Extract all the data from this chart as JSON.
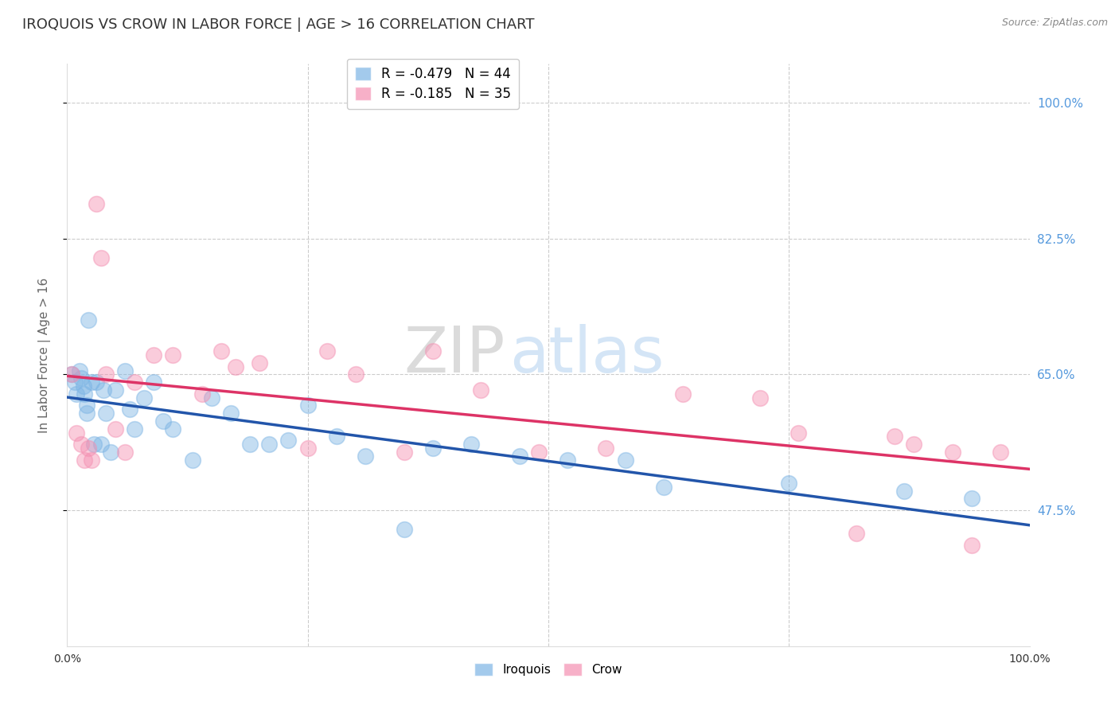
{
  "title": "IROQUOIS VS CROW IN LABOR FORCE | AGE > 16 CORRELATION CHART",
  "source": "Source: ZipAtlas.com",
  "ylabel": "In Labor Force | Age > 16",
  "xlim": [
    0.0,
    1.0
  ],
  "ylim": [
    0.3,
    1.05
  ],
  "yticks": [
    0.475,
    0.65,
    0.825,
    1.0
  ],
  "ytick_labels": [
    "47.5%",
    "65.0%",
    "82.5%",
    "100.0%"
  ],
  "iroquois_color": "#7cb4e4",
  "crow_color": "#f48fb1",
  "iroquois_line_color": "#2255aa",
  "crow_line_color": "#dd3366",
  "iroquois_R": -0.479,
  "iroquois_N": 44,
  "crow_R": -0.185,
  "crow_N": 35,
  "iroquois_x": [
    0.005,
    0.008,
    0.01,
    0.013,
    0.015,
    0.017,
    0.018,
    0.02,
    0.02,
    0.022,
    0.025,
    0.028,
    0.03,
    0.035,
    0.038,
    0.04,
    0.045,
    0.05,
    0.06,
    0.065,
    0.07,
    0.08,
    0.09,
    0.1,
    0.11,
    0.13,
    0.15,
    0.17,
    0.19,
    0.21,
    0.23,
    0.25,
    0.28,
    0.31,
    0.35,
    0.38,
    0.42,
    0.47,
    0.52,
    0.58,
    0.62,
    0.75,
    0.87,
    0.94
  ],
  "iroquois_y": [
    0.65,
    0.64,
    0.625,
    0.655,
    0.645,
    0.635,
    0.625,
    0.61,
    0.6,
    0.72,
    0.64,
    0.56,
    0.64,
    0.56,
    0.63,
    0.6,
    0.55,
    0.63,
    0.655,
    0.605,
    0.58,
    0.62,
    0.64,
    0.59,
    0.58,
    0.54,
    0.62,
    0.6,
    0.56,
    0.56,
    0.565,
    0.61,
    0.57,
    0.545,
    0.45,
    0.555,
    0.56,
    0.545,
    0.54,
    0.54,
    0.505,
    0.51,
    0.5,
    0.49
  ],
  "crow_x": [
    0.005,
    0.01,
    0.015,
    0.018,
    0.022,
    0.025,
    0.03,
    0.035,
    0.04,
    0.05,
    0.06,
    0.07,
    0.09,
    0.11,
    0.14,
    0.16,
    0.175,
    0.2,
    0.25,
    0.27,
    0.3,
    0.35,
    0.38,
    0.43,
    0.49,
    0.56,
    0.64,
    0.72,
    0.76,
    0.82,
    0.86,
    0.88,
    0.92,
    0.94,
    0.97
  ],
  "crow_y": [
    0.65,
    0.575,
    0.56,
    0.54,
    0.555,
    0.54,
    0.87,
    0.8,
    0.65,
    0.58,
    0.55,
    0.64,
    0.675,
    0.675,
    0.625,
    0.68,
    0.66,
    0.665,
    0.555,
    0.68,
    0.65,
    0.55,
    0.68,
    0.63,
    0.55,
    0.555,
    0.625,
    0.62,
    0.575,
    0.445,
    0.57,
    0.56,
    0.55,
    0.43,
    0.55
  ],
  "watermark_zip": "ZIP",
  "watermark_atlas": "atlas",
  "background_color": "#ffffff",
  "grid_color": "#cccccc",
  "title_fontsize": 13,
  "label_fontsize": 11,
  "tick_fontsize": 10
}
